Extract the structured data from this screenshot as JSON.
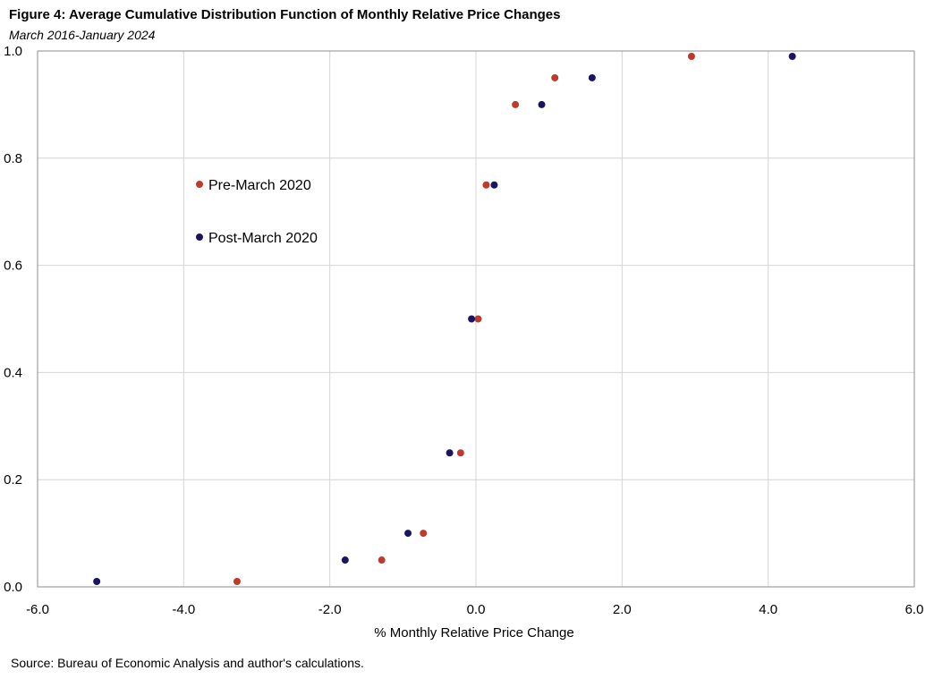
{
  "chart_data": {
    "type": "scatter",
    "title": "Figure 4: Average Cumulative Distribution Function of Monthly Relative Price Changes",
    "subtitle": "March 2016-January 2024",
    "xlabel": "% Monthly  Relative Price Change",
    "ylabel": "",
    "xlim": [
      -6.0,
      6.0
    ],
    "ylim": [
      0.0,
      1.0
    ],
    "x_ticks": [
      "-6.0",
      "-4.0",
      "-2.0",
      "0.0",
      "2.0",
      "4.0",
      "6.0"
    ],
    "y_ticks": [
      "0.0",
      "0.2",
      "0.4",
      "0.6",
      "0.8",
      "1.0"
    ],
    "grid": true,
    "legend_position": "left-upper",
    "series": [
      {
        "name": "Pre-March 2020",
        "color": "#C0392B",
        "points": [
          {
            "x": -3.27,
            "y": 0.01
          },
          {
            "x": -1.29,
            "y": 0.05
          },
          {
            "x": -0.72,
            "y": 0.1
          },
          {
            "x": -0.21,
            "y": 0.25
          },
          {
            "x": 0.03,
            "y": 0.5
          },
          {
            "x": 0.14,
            "y": 0.75
          },
          {
            "x": 0.54,
            "y": 0.9
          },
          {
            "x": 1.08,
            "y": 0.95
          },
          {
            "x": 2.95,
            "y": 0.99
          }
        ]
      },
      {
        "name": "Post-March 2020",
        "color": "#1B1464",
        "points": [
          {
            "x": -5.19,
            "y": 0.01
          },
          {
            "x": -1.79,
            "y": 0.05
          },
          {
            "x": -0.93,
            "y": 0.1
          },
          {
            "x": -0.36,
            "y": 0.25
          },
          {
            "x": -0.06,
            "y": 0.5
          },
          {
            "x": 0.25,
            "y": 0.75
          },
          {
            "x": 0.9,
            "y": 0.9
          },
          {
            "x": 1.59,
            "y": 0.95
          },
          {
            "x": 4.33,
            "y": 0.99
          }
        ]
      }
    ]
  },
  "source": "Source: Bureau of Economic Analysis and author's calculations."
}
